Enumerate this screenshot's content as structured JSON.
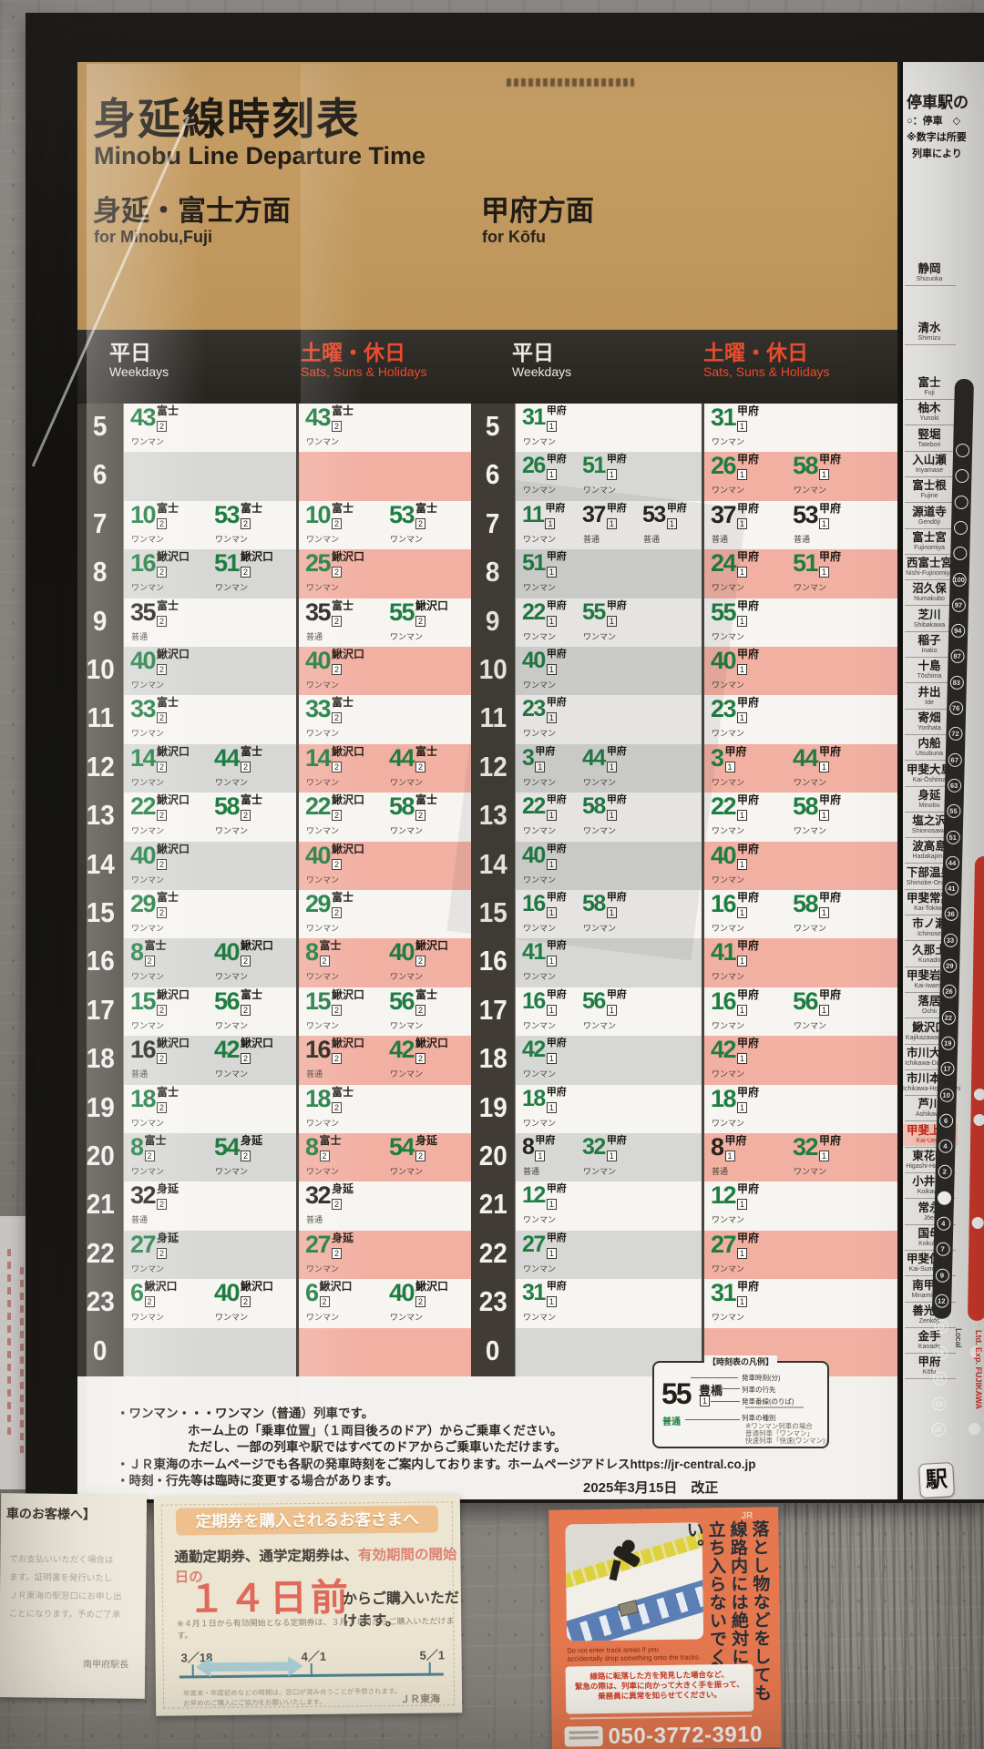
{
  "poster": {
    "title_jp": "身延線時刻表",
    "title_en": "Minobu Line Departure Time",
    "dir_left_jp": "身延・富士方面",
    "dir_left_en": "for Minobu,Fuji",
    "dir_right_jp": "甲府方面",
    "dir_right_en": "for Kōfu",
    "col_weekday_jp": "平日",
    "col_weekday_en": "Weekdays",
    "col_holiday_jp": "土曜・休日",
    "col_holiday_en": "Sats, Suns & Holidays",
    "revision": "2025年3月15日　改正"
  },
  "timetable": {
    "hours": [
      "5",
      "6",
      "7",
      "8",
      "9",
      "10",
      "11",
      "12",
      "13",
      "14",
      "15",
      "16",
      "17",
      "18",
      "19",
      "20",
      "21",
      "22",
      "23",
      "0"
    ],
    "minobu": {
      "platform": "2",
      "wd": [
        [
          [
            "43",
            "富士",
            "ワンマン"
          ]
        ],
        [],
        [
          [
            "10",
            "富士",
            "ワンマン"
          ],
          [
            "53",
            "富士",
            "ワンマン"
          ]
        ],
        [
          [
            "16",
            "鰍沢口",
            "ワンマン"
          ],
          [
            "51",
            "鰍沢口",
            "ワンマン"
          ]
        ],
        [
          [
            "35",
            "富士",
            "普通"
          ]
        ],
        [
          [
            "40",
            "鰍沢口",
            "ワンマン"
          ]
        ],
        [
          [
            "33",
            "富士",
            "ワンマン"
          ]
        ],
        [
          [
            "14",
            "鰍沢口",
            "ワンマン"
          ],
          [
            "44",
            "富士",
            "ワンマン"
          ]
        ],
        [
          [
            "22",
            "鰍沢口",
            "ワンマン"
          ],
          [
            "58",
            "富士",
            "ワンマン"
          ]
        ],
        [
          [
            "40",
            "鰍沢口",
            "ワンマン"
          ]
        ],
        [
          [
            "29",
            "富士",
            "ワンマン"
          ]
        ],
        [
          [
            "8",
            "富士",
            "ワンマン"
          ],
          [
            "40",
            "鰍沢口",
            "ワンマン"
          ]
        ],
        [
          [
            "15",
            "鰍沢口",
            "ワンマン"
          ],
          [
            "56",
            "富士",
            "ワンマン"
          ]
        ],
        [
          [
            "16",
            "鰍沢口",
            "普通"
          ],
          [
            "42",
            "鰍沢口",
            "ワンマン"
          ]
        ],
        [
          [
            "18",
            "富士",
            "ワンマン"
          ]
        ],
        [
          [
            "8",
            "富士",
            "ワンマン"
          ],
          [
            "54",
            "身延",
            "ワンマン"
          ]
        ],
        [
          [
            "32",
            "身延",
            "普通"
          ]
        ],
        [
          [
            "27",
            "身延",
            "ワンマン"
          ]
        ],
        [
          [
            "6",
            "鰍沢口",
            "ワンマン"
          ],
          [
            "40",
            "鰍沢口",
            "ワンマン"
          ]
        ],
        []
      ],
      "hol": [
        [
          [
            "43",
            "富士",
            "ワンマン"
          ]
        ],
        [],
        [
          [
            "10",
            "富士",
            "ワンマン"
          ],
          [
            "53",
            "富士",
            "ワンマン"
          ]
        ],
        [
          [
            "25",
            "鰍沢口",
            "ワンマン"
          ]
        ],
        [
          [
            "35",
            "富士",
            "普通"
          ],
          [
            "55",
            "鰍沢口",
            "ワンマン"
          ]
        ],
        [
          [
            "40",
            "鰍沢口",
            "ワンマン"
          ]
        ],
        [
          [
            "33",
            "富士",
            "ワンマン"
          ]
        ],
        [
          [
            "14",
            "鰍沢口",
            "ワンマン"
          ],
          [
            "44",
            "富士",
            "ワンマン"
          ]
        ],
        [
          [
            "22",
            "鰍沢口",
            "ワンマン"
          ],
          [
            "58",
            "富士",
            "ワンマン"
          ]
        ],
        [
          [
            "40",
            "鰍沢口",
            "ワンマン"
          ]
        ],
        [
          [
            "29",
            "富士",
            "ワンマン"
          ]
        ],
        [
          [
            "8",
            "富士",
            "ワンマン"
          ],
          [
            "40",
            "鰍沢口",
            "ワンマン"
          ]
        ],
        [
          [
            "15",
            "鰍沢口",
            "ワンマン"
          ],
          [
            "56",
            "富士",
            "ワンマン"
          ]
        ],
        [
          [
            "16",
            "鰍沢口",
            "普通"
          ],
          [
            "42",
            "鰍沢口",
            "ワンマン"
          ]
        ],
        [
          [
            "18",
            "富士",
            "ワンマン"
          ]
        ],
        [
          [
            "8",
            "富士",
            "ワンマン"
          ],
          [
            "54",
            "身延",
            "ワンマン"
          ]
        ],
        [
          [
            "32",
            "身延",
            "普通"
          ]
        ],
        [
          [
            "27",
            "身延",
            "ワンマン"
          ]
        ],
        [
          [
            "6",
            "鰍沢口",
            "ワンマン"
          ],
          [
            "40",
            "鰍沢口",
            "ワンマン"
          ]
        ],
        []
      ]
    },
    "kofu": {
      "platform": "1",
      "wd": [
        [
          [
            "31",
            "甲府",
            "ワンマン"
          ]
        ],
        [
          [
            "26",
            "甲府",
            "ワンマン"
          ],
          [
            "51",
            "甲府",
            "ワンマン"
          ]
        ],
        [
          [
            "11",
            "甲府",
            "ワンマン"
          ],
          [
            "37",
            "甲府",
            "普通"
          ],
          [
            "53",
            "甲府",
            "普通"
          ]
        ],
        [
          [
            "51",
            "甲府",
            "ワンマン"
          ]
        ],
        [
          [
            "22",
            "甲府",
            "ワンマン"
          ],
          [
            "55",
            "甲府",
            "ワンマン"
          ]
        ],
        [
          [
            "40",
            "甲府",
            "ワンマン"
          ]
        ],
        [
          [
            "23",
            "甲府",
            "ワンマン"
          ]
        ],
        [
          [
            "3",
            "甲府",
            "ワンマン"
          ],
          [
            "44",
            "甲府",
            "ワンマン"
          ]
        ],
        [
          [
            "22",
            "甲府",
            "ワンマン"
          ],
          [
            "58",
            "甲府",
            "ワンマン"
          ]
        ],
        [
          [
            "40",
            "甲府",
            "ワンマン"
          ]
        ],
        [
          [
            "16",
            "甲府",
            "ワンマン"
          ],
          [
            "58",
            "甲府",
            "ワンマン"
          ]
        ],
        [
          [
            "41",
            "甲府",
            "ワンマン"
          ]
        ],
        [
          [
            "16",
            "甲府",
            "ワンマン"
          ],
          [
            "56",
            "甲府",
            "ワンマン"
          ]
        ],
        [
          [
            "42",
            "甲府",
            "ワンマン"
          ]
        ],
        [
          [
            "18",
            "甲府",
            "ワンマン"
          ]
        ],
        [
          [
            "8",
            "甲府",
            "普通"
          ],
          [
            "32",
            "甲府",
            "ワンマン"
          ]
        ],
        [
          [
            "12",
            "甲府",
            "ワンマン"
          ]
        ],
        [
          [
            "27",
            "甲府",
            "ワンマン"
          ]
        ],
        [
          [
            "31",
            "甲府",
            "ワンマン"
          ]
        ],
        []
      ],
      "hol": [
        [
          [
            "31",
            "甲府",
            "ワンマン"
          ]
        ],
        [
          [
            "26",
            "甲府",
            "ワンマン"
          ],
          [
            "58",
            "甲府",
            "ワンマン"
          ]
        ],
        [
          [
            "37",
            "甲府",
            "普通"
          ],
          [
            "53",
            "甲府",
            "普通"
          ]
        ],
        [
          [
            "24",
            "甲府",
            "ワンマン"
          ],
          [
            "51",
            "甲府",
            "ワンマン"
          ]
        ],
        [
          [
            "55",
            "甲府",
            "ワンマン"
          ]
        ],
        [
          [
            "40",
            "甲府",
            "ワンマン"
          ]
        ],
        [
          [
            "23",
            "甲府",
            "ワンマン"
          ]
        ],
        [
          [
            "3",
            "甲府",
            "ワンマン"
          ],
          [
            "44",
            "甲府",
            "ワンマン"
          ]
        ],
        [
          [
            "22",
            "甲府",
            "ワンマン"
          ],
          [
            "58",
            "甲府",
            "ワンマン"
          ]
        ],
        [
          [
            "40",
            "甲府",
            "ワンマン"
          ]
        ],
        [
          [
            "16",
            "甲府",
            "ワンマン"
          ],
          [
            "58",
            "甲府",
            "ワンマン"
          ]
        ],
        [
          [
            "41",
            "甲府",
            "ワンマン"
          ]
        ],
        [
          [
            "16",
            "甲府",
            "ワンマン"
          ],
          [
            "56",
            "甲府",
            "ワンマン"
          ]
        ],
        [
          [
            "42",
            "甲府",
            "ワンマン"
          ]
        ],
        [
          [
            "18",
            "甲府",
            "ワンマン"
          ]
        ],
        [
          [
            "8",
            "甲府",
            "普通"
          ],
          [
            "32",
            "甲府",
            "ワンマン"
          ]
        ],
        [
          [
            "12",
            "甲府",
            "ワンマン"
          ]
        ],
        [
          [
            "27",
            "甲府",
            "ワンマン"
          ]
        ],
        [
          [
            "31",
            "甲府",
            "ワンマン"
          ]
        ],
        []
      ]
    }
  },
  "legend": {
    "title": "【時刻表の凡例】",
    "sample_min": "55",
    "sample_dest": "豊橋",
    "sample_plat": "1",
    "sample_type": "普通",
    "lbl_time": "発車時刻(分)",
    "lbl_dest": "列車の行先",
    "lbl_plat": "発車番線(のりば)",
    "lbl_type": "列車の種別",
    "lbl_type_note1": "※ワンマン列車の場合",
    "lbl_type_note2": "普通列車「ワンマン」",
    "lbl_type_note3": "快速列車「快速(ワンマン)」"
  },
  "notes": [
    "・ワンマン・・・ワンマン（普通）列車です。",
    "ホーム上の「乗車位置」（１両目後ろのドア）からご乗車ください。",
    "ただし、一部の列車や駅ではすべてのドアからご乗車いただけます。",
    "・ＪＲ東海のホームページでも各駅の発車時刻をご案内しております。ホームページアドレスhttps://jr-central.co.jp",
    "・時刻・行先等は臨時に変更する場合があります。"
  ],
  "sidebar": {
    "header": "停車駅の",
    "sub1": "○：停車　◇",
    "sub2": "※数字は所要",
    "sub3": "列車により",
    "local_label": "Local",
    "express_label": "Ltd. Exp. FUJIKAWA",
    "station_badge": "駅",
    "stations": [
      {
        "n": "静岡",
        "r": "Shizuoka",
        "t": null,
        "hl": false,
        "red": false
      },
      {
        "n": "清水",
        "r": "Shimizu",
        "t": null,
        "hl": false,
        "red": false
      },
      {
        "n": "富士",
        "r": "Fuji",
        "t": null,
        "hl": false,
        "red": false
      },
      {
        "n": "柚木",
        "r": "Yunoki",
        "t": null,
        "hl": false,
        "red": false
      },
      {
        "n": "竪堀",
        "r": "Tatebori",
        "t": null,
        "hl": false,
        "red": false
      },
      {
        "n": "入山瀬",
        "r": "Iriyamase",
        "t": null,
        "hl": false,
        "red": false
      },
      {
        "n": "富士根",
        "r": "Fujine",
        "t": null,
        "hl": false,
        "red": false
      },
      {
        "n": "源道寺",
        "r": "Gendōji",
        "t": "100",
        "hl": false,
        "red": false
      },
      {
        "n": "富士宮",
        "r": "Fujinomiya",
        "t": "97",
        "hl": false,
        "red": false
      },
      {
        "n": "西富士宮",
        "r": "Nishi-Fujinomiya",
        "t": "94",
        "hl": false,
        "red": false
      },
      {
        "n": "沼久保",
        "r": "Numakubo",
        "t": "87",
        "hl": false,
        "red": false
      },
      {
        "n": "芝川",
        "r": "Shibakawa",
        "t": "83",
        "hl": false,
        "red": false
      },
      {
        "n": "稲子",
        "r": "Inako",
        "t": "76",
        "hl": false,
        "red": false
      },
      {
        "n": "十島",
        "r": "Tōshima",
        "t": "72",
        "hl": false,
        "red": false
      },
      {
        "n": "井出",
        "r": "Ide",
        "t": "67",
        "hl": false,
        "red": false
      },
      {
        "n": "寄畑",
        "r": "Yorihata",
        "t": "63",
        "hl": false,
        "red": false
      },
      {
        "n": "内船",
        "r": "Utsubuna",
        "t": "55",
        "hl": false,
        "red": false
      },
      {
        "n": "甲斐大島",
        "r": "Kai-Ōshima",
        "t": "51",
        "hl": false,
        "red": false
      },
      {
        "n": "身延",
        "r": "Minobu",
        "t": "44",
        "hl": false,
        "red": false
      },
      {
        "n": "塩之沢",
        "r": "Shionosawa",
        "t": "41",
        "hl": false,
        "red": false
      },
      {
        "n": "波高島",
        "r": "Hadakajima",
        "t": "36",
        "hl": false,
        "red": false
      },
      {
        "n": "下部温泉",
        "r": "Shimobe-Onsen",
        "t": "33",
        "hl": false,
        "red": false
      },
      {
        "n": "甲斐常葉",
        "r": "Kai-Tokiwa",
        "t": "29",
        "hl": false,
        "red": false
      },
      {
        "n": "市ノ瀬",
        "r": "Ichinose",
        "t": "26",
        "hl": false,
        "red": false
      },
      {
        "n": "久那土",
        "r": "Kunado",
        "t": "22",
        "hl": false,
        "red": false
      },
      {
        "n": "甲斐岩間",
        "r": "Kai-Iwama",
        "t": "19",
        "hl": false,
        "red": false
      },
      {
        "n": "落居",
        "r": "Ochii",
        "t": "17",
        "hl": false,
        "red": false
      },
      {
        "n": "鰍沢口",
        "r": "Kajikazawaguchi",
        "t": "10",
        "hl": false,
        "red": true
      },
      {
        "n": "市川大門",
        "r": "Ichikawa-Daimon",
        "t": "6",
        "hl": false,
        "red": true
      },
      {
        "n": "市川本町",
        "r": "Ichikawa-Hommachi",
        "t": "4",
        "hl": false,
        "red": false
      },
      {
        "n": "芦川",
        "r": "Ashikawa",
        "t": "2",
        "hl": false,
        "red": false
      },
      {
        "n": "甲斐上野",
        "r": "Kai-Ueno",
        "t": null,
        "hl": true,
        "red": false
      },
      {
        "n": "東花輪",
        "r": "Higashi-Hanawa",
        "t": "4",
        "hl": false,
        "red": true
      },
      {
        "n": "小井川",
        "r": "Koikawa",
        "t": "7",
        "hl": false,
        "red": false
      },
      {
        "n": "常永",
        "r": "Jōei",
        "t": "9",
        "hl": false,
        "red": false
      },
      {
        "n": "国母",
        "r": "Kokubo",
        "t": "12",
        "hl": false,
        "red": false
      },
      {
        "n": "甲斐住吉",
        "r": "Kai-Sumiyoshi",
        "t": "15",
        "hl": false,
        "red": false
      },
      {
        "n": "南甲府",
        "r": "Minami-Kōfu",
        "t": "18",
        "hl": false,
        "red": true
      },
      {
        "n": "善光寺",
        "r": "Zenkōji",
        "t": "21",
        "hl": false,
        "red": false
      },
      {
        "n": "金手",
        "r": "Kanade",
        "t": "23",
        "hl": false,
        "red": false
      },
      {
        "n": "甲府",
        "r": "Kōfu",
        "t": "25",
        "hl": false,
        "red": true
      }
    ]
  },
  "posters": {
    "left": {
      "header": "車のお客様へ】",
      "lines": [
        "でお支払いいただく場合は",
        "ます。証明書を発行いたし",
        "ＪＲ東海の駅窓口にお申し出",
        "ことになります。予めご了承"
      ],
      "sign": "南甲府駅長"
    },
    "commuter": {
      "header": "定期券を購入されるお客さまへ",
      "body1": "通勤定期券、通学定期券は、",
      "body2": "有効期間の開始日の",
      "big": "１４日前",
      "body3": "からご購入いただけます。",
      "note": "※４月１日から有効開始となる定期券は、３月１８日からご購入いただけます。",
      "t1": "3／18",
      "t2": "4／1",
      "t3": "5／1",
      "foot1": "年度末・年度初めなどの時期は、窓口が混み合うことが予想されます。",
      "foot2": "お早めのご購入にご協力をお願いいたします。",
      "brand": "ＪＲ東海"
    },
    "safety": {
      "jr": "JR",
      "v1": "落とし物などをしても",
      "v2": "線路内には絶対に",
      "v3": "立ち入らないでください。",
      "en1": "Do not enter track areas if you",
      "en2": "accidentally drop something onto the tracks.",
      "box1": "線路に転落した方を発見した場合など、",
      "box2": "緊急の際は、列車に向かって大きく手を振って、",
      "box3": "乗務員に異常を知らせてください。",
      "phone": "050-3772-3910"
    }
  }
}
